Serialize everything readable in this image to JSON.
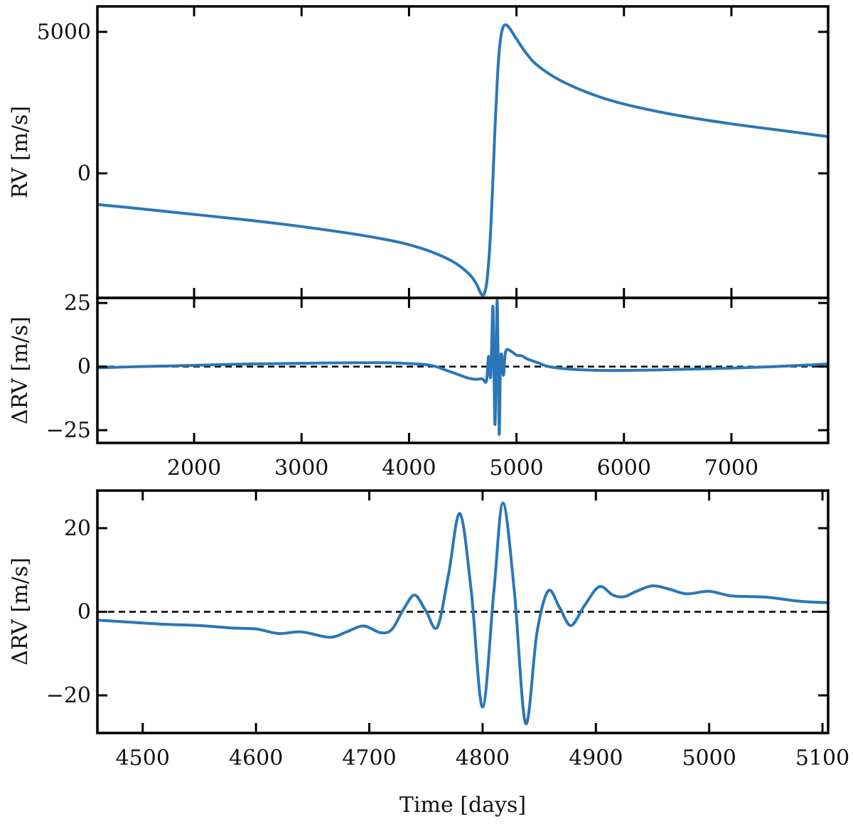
{
  "figure": {
    "line_color": "#2a77b8",
    "reference_line_color": "#000000"
  },
  "chart_data": [
    {
      "id": "rv-full",
      "type": "line",
      "title": "",
      "xlabel": "",
      "ylabel": "RV [m/s]",
      "xlim": [
        1100,
        7900
      ],
      "ylim": [
        -4400,
        5900
      ],
      "xticks": [
        2000,
        3000,
        4000,
        5000,
        6000,
        7000
      ],
      "xtick_labels": [
        "",
        "",
        "",
        "",
        "",
        ""
      ],
      "yticks": [
        0,
        5000
      ],
      "ytick_labels": [
        "0",
        "5000"
      ],
      "reference_line": null,
      "series": [
        {
          "name": "RV",
          "x": [
            1100,
            1500,
            2000,
            2500,
            3000,
            3500,
            3800,
            4000,
            4200,
            4400,
            4550,
            4620,
            4660,
            4680,
            4700,
            4720,
            4740,
            4760,
            4780,
            4800,
            4820,
            4840,
            4860,
            4880,
            4900,
            4920,
            4950,
            5000,
            5100,
            5200,
            5400,
            5700,
            6000,
            6500,
            7000,
            7500,
            7900
          ],
          "y": [
            -1100,
            -1250,
            -1450,
            -1650,
            -1880,
            -2150,
            -2350,
            -2520,
            -2760,
            -3100,
            -3520,
            -3860,
            -4180,
            -4300,
            -4250,
            -3950,
            -3200,
            -2000,
            -300,
            1600,
            3200,
            4350,
            4950,
            5200,
            5250,
            5200,
            5050,
            4750,
            4200,
            3800,
            3300,
            2800,
            2450,
            2050,
            1750,
            1500,
            1300
          ]
        }
      ]
    },
    {
      "id": "drv-full",
      "type": "line",
      "title": "",
      "xlabel": "",
      "ylabel": "ΔRV [m/s]",
      "xlim": [
        1100,
        7900
      ],
      "ylim": [
        -30,
        27
      ],
      "xticks": [
        2000,
        3000,
        4000,
        5000,
        6000,
        7000
      ],
      "xtick_labels": [
        "2000",
        "3000",
        "4000",
        "5000",
        "6000",
        "7000"
      ],
      "yticks": [
        -25,
        0,
        25
      ],
      "ytick_labels": [
        "−25",
        "0",
        "25"
      ],
      "reference_line": 0,
      "series": [
        {
          "name": "ΔRV",
          "x": [
            1100,
            1500,
            2000,
            2500,
            3000,
            3500,
            3800,
            4000,
            4150,
            4250,
            4350,
            4450,
            4550,
            4620,
            4680,
            4720,
            4740,
            4760,
            4780,
            4790,
            4800,
            4810,
            4820,
            4830,
            4840,
            4850,
            4860,
            4870,
            4880,
            4900,
            4950,
            5000,
            5050,
            5100,
            5200,
            5300,
            5500,
            5800,
            6200,
            6600,
            7000,
            7400,
            7900
          ],
          "y": [
            -0.5,
            0,
            0.5,
            1,
            1.3,
            1.5,
            1.5,
            1.2,
            0.8,
            0,
            -1.5,
            -3,
            -4.5,
            -5,
            -4.8,
            -5.7,
            4,
            -3.8,
            23.7,
            0,
            -22.8,
            0,
            26,
            0,
            -26.7,
            0,
            5,
            0,
            -3.2,
            6,
            6,
            4.5,
            4.2,
            3,
            1.5,
            0,
            -1,
            -1.5,
            -1.4,
            -1,
            -0.6,
            0,
            1
          ]
        }
      ]
    },
    {
      "id": "drv-zoom",
      "type": "line",
      "title": "",
      "xlabel": "Time [days]",
      "ylabel": "ΔRV [m/s]",
      "xlim": [
        4460,
        5105
      ],
      "ylim": [
        -29,
        29
      ],
      "xticks": [
        4500,
        4600,
        4700,
        4800,
        4900,
        5000,
        5100
      ],
      "xtick_labels": [
        "4500",
        "4600",
        "4700",
        "4800",
        "4900",
        "5000",
        "5100"
      ],
      "yticks": [
        -20,
        0,
        20
      ],
      "ytick_labels": [
        "−20",
        "0",
        "20"
      ],
      "reference_line": 0,
      "series": [
        {
          "name": "ΔRV",
          "x": [
            4460,
            4490,
            4520,
            4550,
            4580,
            4600,
            4620,
            4640,
            4665,
            4680,
            4695,
            4710,
            4720,
            4730,
            4740,
            4750,
            4760,
            4770,
            4780,
            4790,
            4800,
            4810,
            4818,
            4828,
            4838,
            4848,
            4858,
            4868,
            4878,
            4890,
            4903,
            4915,
            4925,
            4935,
            4950,
            4965,
            4980,
            5000,
            5020,
            5050,
            5080,
            5105
          ],
          "y": [
            -2,
            -2.5,
            -3,
            -3.3,
            -3.9,
            -4.1,
            -5.2,
            -4.8,
            -6.1,
            -4.8,
            -3.4,
            -5,
            -4.2,
            0.5,
            4,
            0.2,
            -3.7,
            9,
            23.5,
            5,
            -22.8,
            5,
            26,
            5,
            -26.7,
            -5,
            5,
            1,
            -3.3,
            1.5,
            6,
            4,
            3.6,
            4.8,
            6.2,
            5.4,
            4.3,
            4.9,
            3.8,
            3.5,
            2.5,
            2.2
          ]
        }
      ]
    }
  ]
}
